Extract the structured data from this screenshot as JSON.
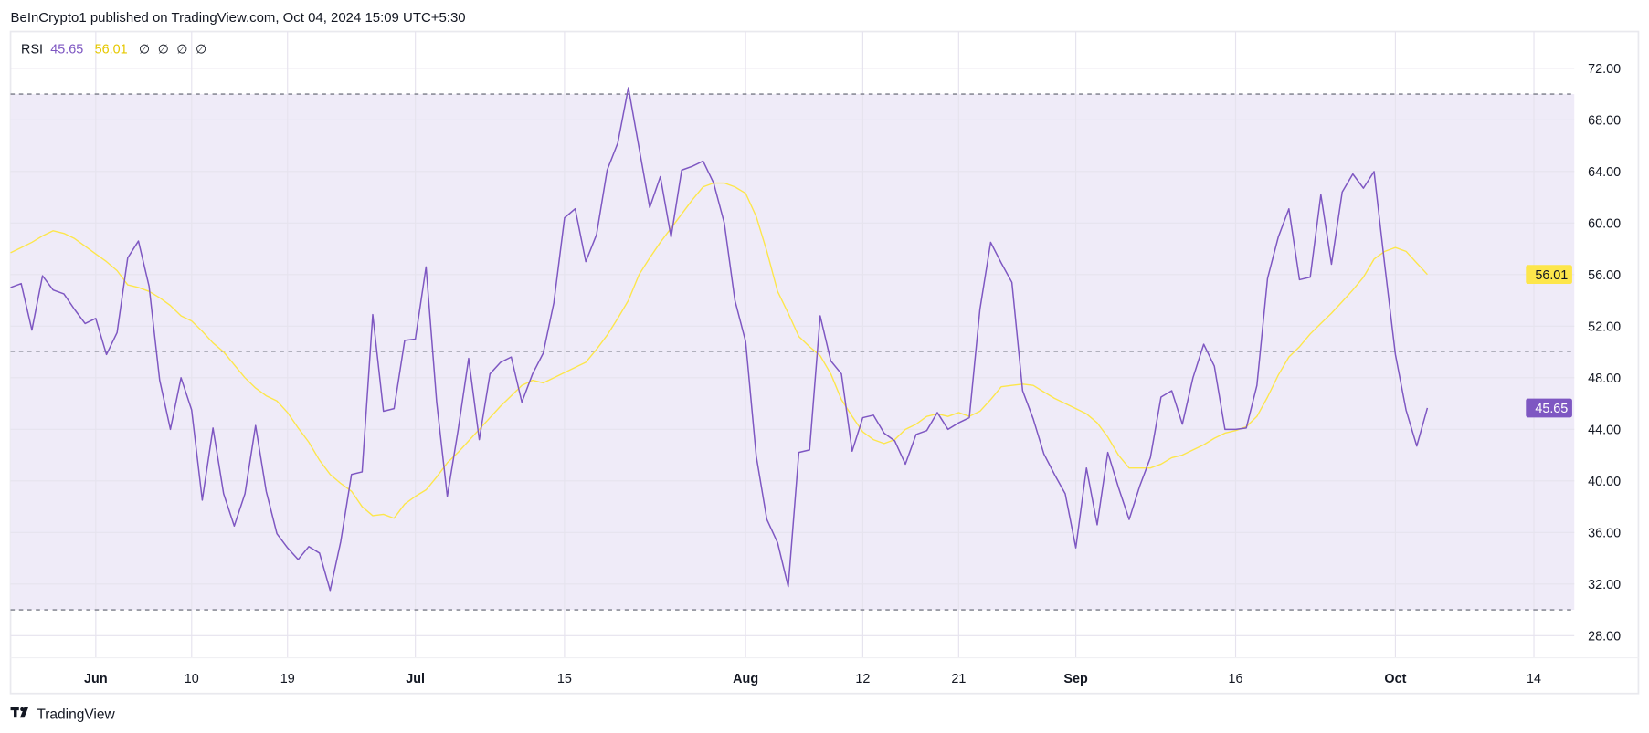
{
  "header": {
    "published": "BeInCrypto1 published on TradingView.com, Oct 04, 2024 15:09 UTC+5:30"
  },
  "legend": {
    "indicator": "RSI",
    "rsi_value": "45.65",
    "ma_value": "56.01",
    "extra_values": [
      "∅",
      "∅",
      "∅",
      "∅"
    ]
  },
  "footer": {
    "logo_text": "TradingView"
  },
  "colors": {
    "rsi": "#7e57c2",
    "ma": "#fde64b",
    "band": "#efebf8",
    "level_line": "#787b86",
    "grid": "#e6e3ee"
  },
  "chart_data": {
    "type": "line",
    "title": "",
    "xlabel": "",
    "ylabel": "",
    "ylim": [
      28,
      72
    ],
    "grid": true,
    "legend": "top-left",
    "y_ticks": [
      "28.00",
      "32.00",
      "36.00",
      "40.00",
      "44.00",
      "48.00",
      "52.00",
      "56.00",
      "60.00",
      "64.00",
      "68.00",
      "72.00"
    ],
    "x_ticks": [
      {
        "label": "Jun",
        "date": "2024-06-01",
        "bold": true
      },
      {
        "label": "10",
        "date": "2024-06-10",
        "bold": false
      },
      {
        "label": "19",
        "date": "2024-06-19",
        "bold": false
      },
      {
        "label": "Jul",
        "date": "2024-07-01",
        "bold": true
      },
      {
        "label": "15",
        "date": "2024-07-15",
        "bold": false
      },
      {
        "label": "Aug",
        "date": "2024-08-01",
        "bold": true
      },
      {
        "label": "12",
        "date": "2024-08-12",
        "bold": false
      },
      {
        "label": "21",
        "date": "2024-08-21",
        "bold": false
      },
      {
        "label": "Sep",
        "date": "2024-09-01",
        "bold": true
      },
      {
        "label": "16",
        "date": "2024-09-16",
        "bold": false
      },
      {
        "label": "Oct",
        "date": "2024-10-01",
        "bold": true
      },
      {
        "label": "14",
        "date": "2024-10-14",
        "bold": false
      }
    ],
    "levels": {
      "upper": 70,
      "middle": 50,
      "lower": 30
    },
    "last_value_labels": {
      "rsi": "45.65",
      "ma": "56.01"
    },
    "dates": [
      "2024-05-24",
      "2024-05-25",
      "2024-05-26",
      "2024-05-27",
      "2024-05-28",
      "2024-05-29",
      "2024-05-30",
      "2024-05-31",
      "2024-06-01",
      "2024-06-02",
      "2024-06-03",
      "2024-06-04",
      "2024-06-05",
      "2024-06-06",
      "2024-06-07",
      "2024-06-08",
      "2024-06-09",
      "2024-06-10",
      "2024-06-11",
      "2024-06-12",
      "2024-06-13",
      "2024-06-14",
      "2024-06-15",
      "2024-06-16",
      "2024-06-17",
      "2024-06-18",
      "2024-06-19",
      "2024-06-20",
      "2024-06-21",
      "2024-06-22",
      "2024-06-23",
      "2024-06-24",
      "2024-06-25",
      "2024-06-26",
      "2024-06-27",
      "2024-06-28",
      "2024-06-29",
      "2024-06-30",
      "2024-07-01",
      "2024-07-02",
      "2024-07-03",
      "2024-07-04",
      "2024-07-05",
      "2024-07-06",
      "2024-07-07",
      "2024-07-08",
      "2024-07-09",
      "2024-07-10",
      "2024-07-11",
      "2024-07-12",
      "2024-07-13",
      "2024-07-14",
      "2024-07-15",
      "2024-07-16",
      "2024-07-17",
      "2024-07-18",
      "2024-07-19",
      "2024-07-20",
      "2024-07-21",
      "2024-07-22",
      "2024-07-23",
      "2024-07-24",
      "2024-07-25",
      "2024-07-26",
      "2024-07-27",
      "2024-07-28",
      "2024-07-29",
      "2024-07-30",
      "2024-07-31",
      "2024-08-01",
      "2024-08-02",
      "2024-08-03",
      "2024-08-04",
      "2024-08-05",
      "2024-08-06",
      "2024-08-07",
      "2024-08-08",
      "2024-08-09",
      "2024-08-10",
      "2024-08-11",
      "2024-08-12",
      "2024-08-13",
      "2024-08-14",
      "2024-08-15",
      "2024-08-16",
      "2024-08-17",
      "2024-08-18",
      "2024-08-19",
      "2024-08-20",
      "2024-08-21",
      "2024-08-22",
      "2024-08-23",
      "2024-08-24",
      "2024-08-25",
      "2024-08-26",
      "2024-08-27",
      "2024-08-28",
      "2024-08-29",
      "2024-08-30",
      "2024-08-31",
      "2024-09-01",
      "2024-09-02",
      "2024-09-03",
      "2024-09-04",
      "2024-09-05",
      "2024-09-06",
      "2024-09-07",
      "2024-09-08",
      "2024-09-09",
      "2024-09-10",
      "2024-09-11",
      "2024-09-12",
      "2024-09-13",
      "2024-09-14",
      "2024-09-15",
      "2024-09-16",
      "2024-09-17",
      "2024-09-18",
      "2024-09-19",
      "2024-09-20",
      "2024-09-21",
      "2024-09-22",
      "2024-09-23",
      "2024-09-24",
      "2024-09-25",
      "2024-09-26",
      "2024-09-27",
      "2024-09-28",
      "2024-09-29",
      "2024-09-30",
      "2024-10-01",
      "2024-10-02",
      "2024-10-03",
      "2024-10-04"
    ],
    "series": [
      {
        "name": "RSI",
        "color": "#7e57c2",
        "values": [
          55.0,
          55.3,
          51.7,
          55.9,
          54.8,
          54.5,
          53.3,
          52.2,
          52.6,
          49.8,
          51.5,
          57.3,
          58.6,
          55.1,
          47.8,
          44.0,
          48.0,
          45.5,
          38.5,
          44.1,
          39.0,
          36.5,
          39.0,
          44.3,
          39.2,
          35.9,
          34.8,
          33.9,
          34.9,
          34.4,
          31.5,
          35.3,
          40.5,
          40.7,
          52.9,
          45.4,
          45.6,
          50.9,
          51.0,
          56.6,
          46.1,
          38.8,
          43.9,
          49.5,
          43.2,
          48.3,
          49.2,
          49.6,
          46.1,
          48.3,
          49.9,
          53.8,
          60.4,
          61.1,
          57.0,
          59.1,
          64.1,
          66.2,
          70.5,
          65.8,
          61.2,
          63.6,
          58.9,
          64.1,
          64.4,
          64.8,
          63.1,
          60.0,
          54.0,
          50.8,
          41.9,
          37.0,
          35.2,
          31.8,
          42.2,
          42.4,
          52.8,
          49.3,
          48.3,
          42.3,
          44.9,
          45.1,
          43.7,
          43.1,
          41.3,
          43.6,
          43.9,
          45.3,
          44.0,
          44.5,
          44.9,
          53.3,
          58.5,
          56.9,
          55.4,
          47.0,
          44.8,
          42.1,
          40.5,
          39.0,
          34.8,
          41.0,
          36.6,
          42.2,
          39.5,
          37.0,
          39.6,
          41.8,
          46.5,
          47.0,
          44.4,
          48.0,
          50.6,
          48.9,
          44.0,
          44.0,
          44.1,
          47.4,
          55.7,
          58.9,
          61.1,
          55.6,
          55.8,
          62.2,
          56.8,
          62.4,
          63.8,
          62.7,
          64.0,
          56.7,
          49.8,
          45.5,
          42.7,
          45.65
        ]
      },
      {
        "name": "",
        "color": "#fde64b",
        "values": [
          57.7,
          58.1,
          58.5,
          59.0,
          59.4,
          59.2,
          58.8,
          58.2,
          57.6,
          57.0,
          56.3,
          55.2,
          55.0,
          54.7,
          54.2,
          53.6,
          52.8,
          52.4,
          51.6,
          50.7,
          50.0,
          49.0,
          48.0,
          47.2,
          46.6,
          46.2,
          45.3,
          44.1,
          43.0,
          41.6,
          40.5,
          39.8,
          39.2,
          38.0,
          37.3,
          37.4,
          37.1,
          38.2,
          38.8,
          39.3,
          40.3,
          41.4,
          42.2,
          43.1,
          44.0,
          44.9,
          45.8,
          46.6,
          47.4,
          47.8,
          47.6,
          48.0,
          48.4,
          48.8,
          49.2,
          50.2,
          51.3,
          52.6,
          54.0,
          56.0,
          57.3,
          58.5,
          59.6,
          60.7,
          61.8,
          62.8,
          63.1,
          63.1,
          62.8,
          62.3,
          60.5,
          57.8,
          54.7,
          53.0,
          51.2,
          50.4,
          49.7,
          48.3,
          46.3,
          45.0,
          43.8,
          43.2,
          42.9,
          43.2,
          44.0,
          44.4,
          45.0,
          45.2,
          45.0,
          45.3,
          45.0,
          45.4,
          46.3,
          47.3,
          47.4,
          47.5,
          47.4,
          46.9,
          46.4,
          46.0,
          45.6,
          45.2,
          44.5,
          43.4,
          42.0,
          41.0,
          41.0,
          41.0,
          41.3,
          41.8,
          42.0,
          42.4,
          42.8,
          43.3,
          43.7,
          43.9,
          44.2,
          45.0,
          46.5,
          48.2,
          49.6,
          50.4,
          51.4,
          52.2,
          53.0,
          53.9,
          54.8,
          55.8,
          57.2,
          57.8,
          58.1,
          57.8,
          56.9,
          56.01
        ]
      }
    ]
  }
}
